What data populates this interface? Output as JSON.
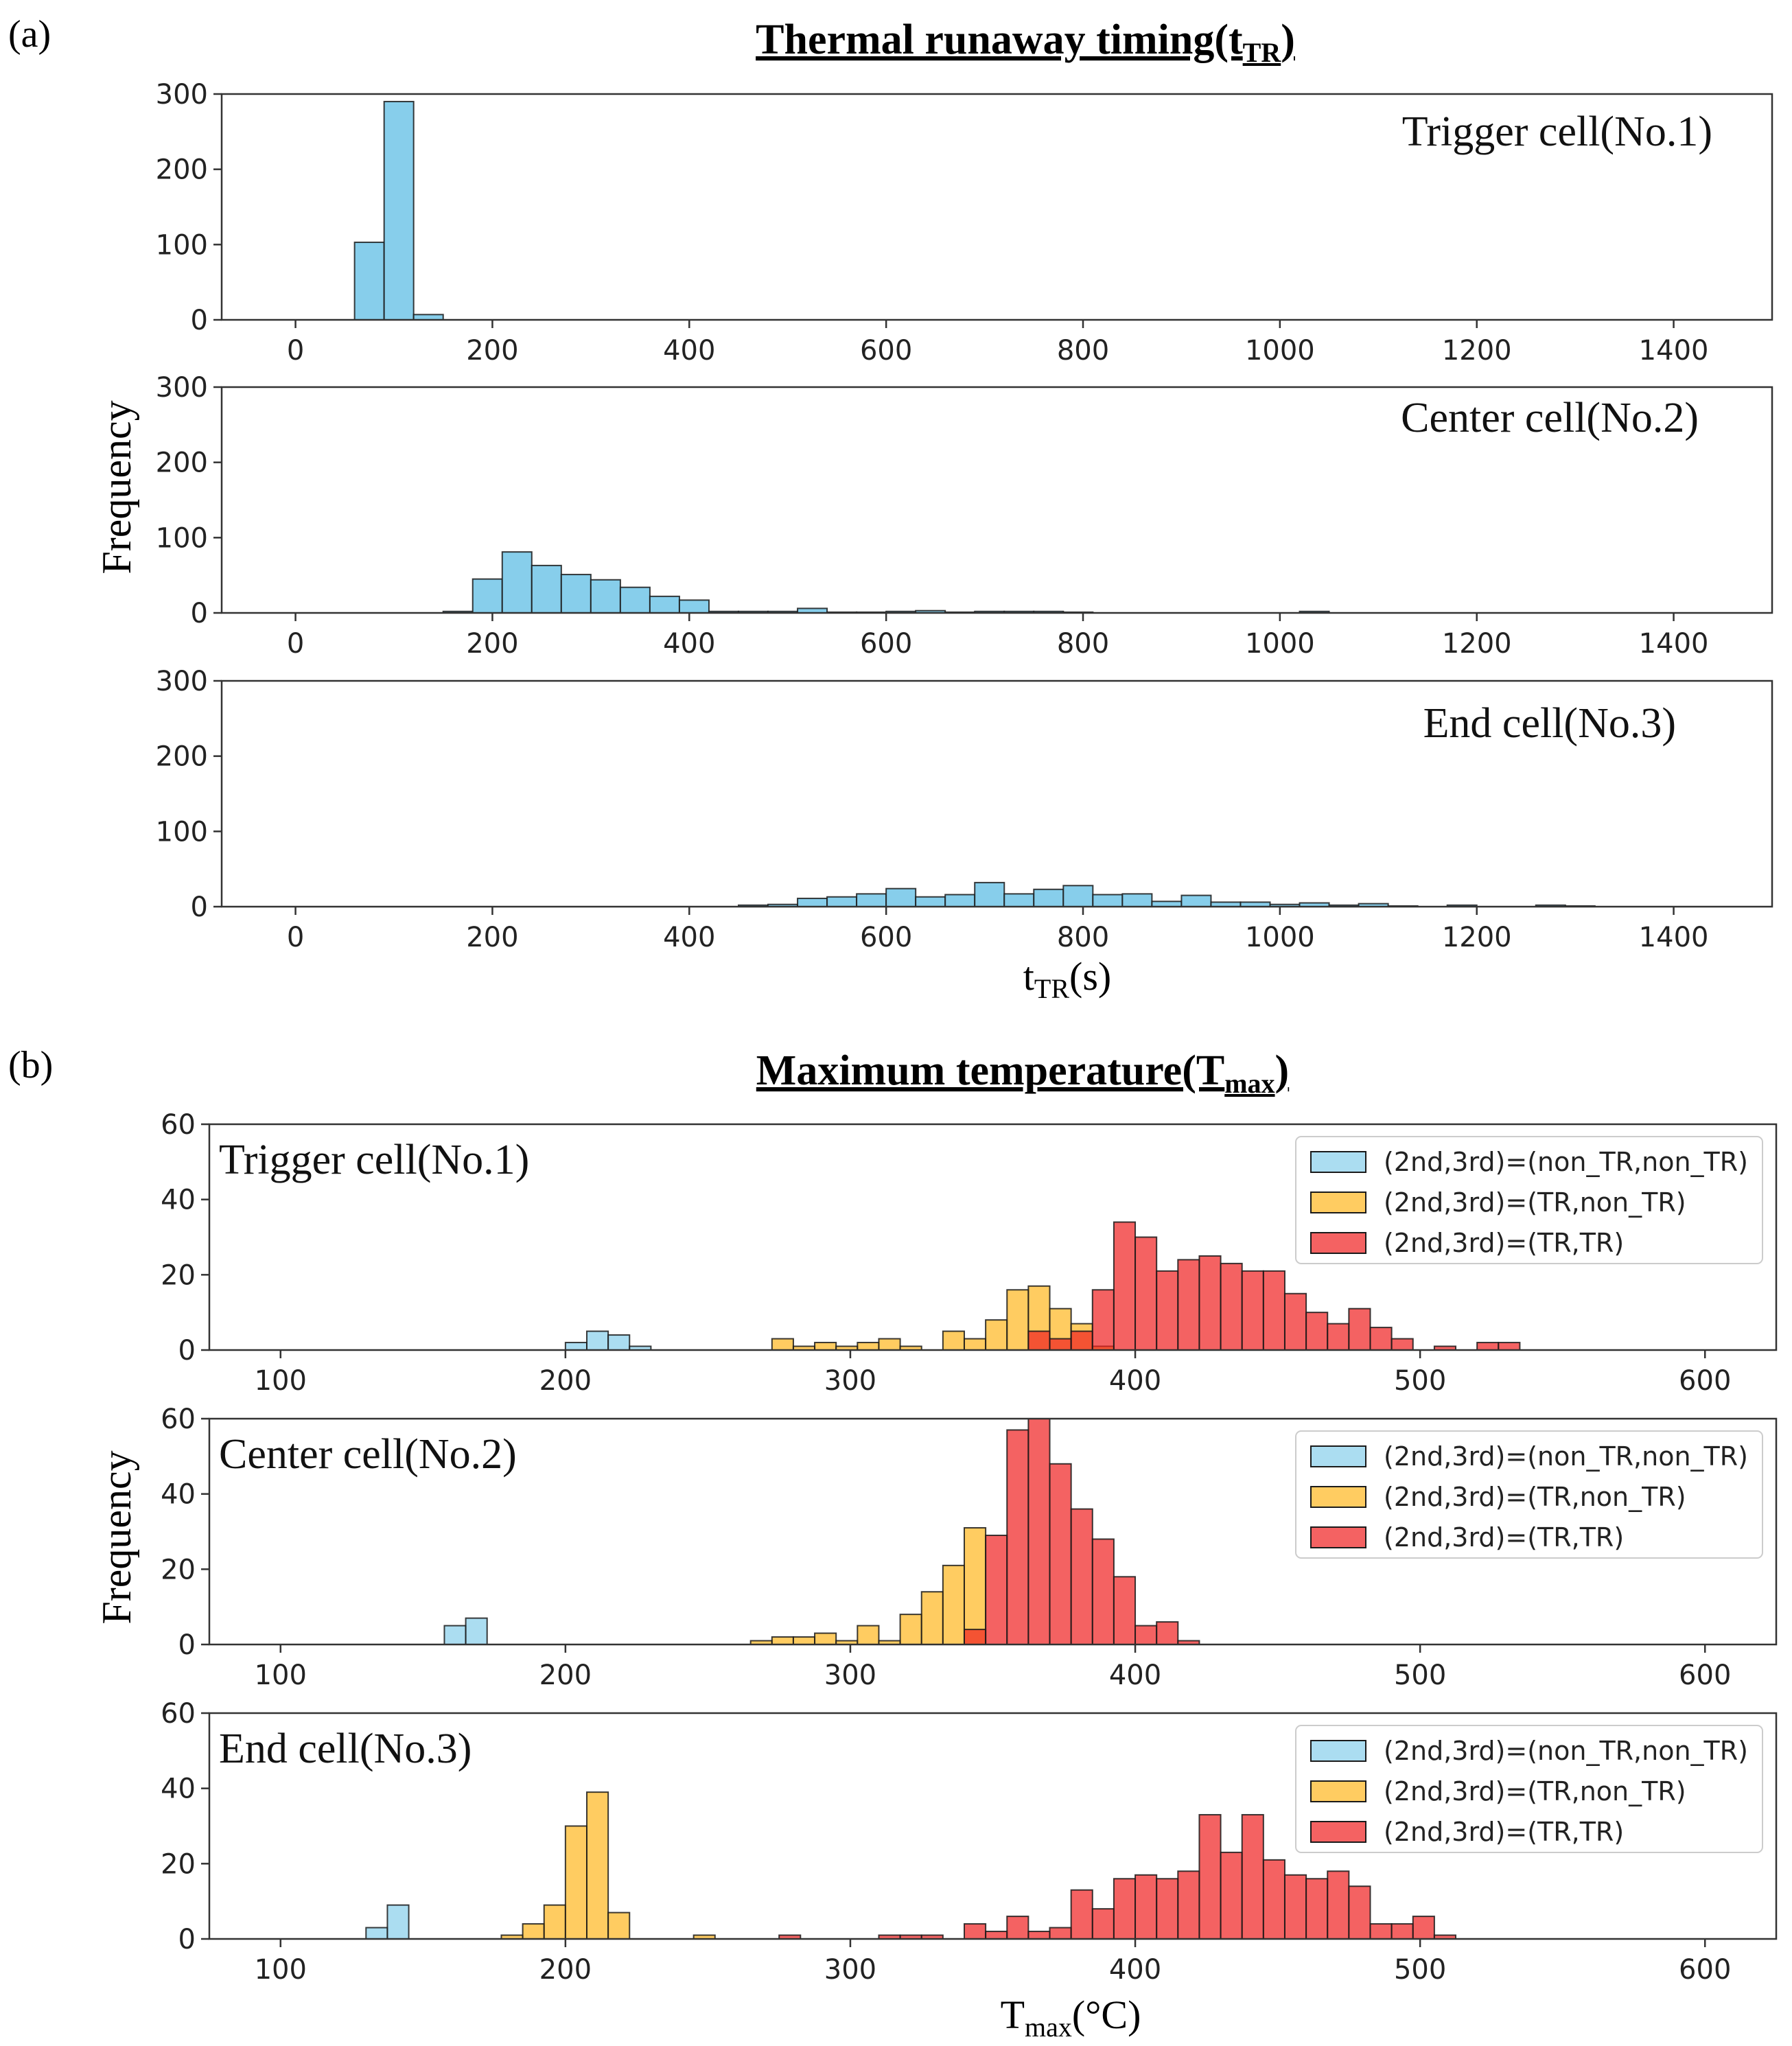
{
  "panel_a": {
    "label": "(a)",
    "title": "Thermal runaway timing(t",
    "title_sub": "TR",
    "title_close": ")",
    "ylabel": "Frequency",
    "xlabel": "t",
    "xlabel_sub": "TR",
    "xlabel_tail": "(s)"
  },
  "panel_b": {
    "label": "(b)",
    "title": "Maximum temperature(T",
    "title_sub": "max",
    "title_close": ")",
    "ylabel": "Frequency",
    "xlabel": "T",
    "xlabel_sub": "max",
    "xlabel_tail": "(°C)"
  },
  "chart_data": [
    {
      "type": "bar",
      "id": "a1",
      "panel": "a",
      "annotation": "Trigger cell(No.1)",
      "xlim": [
        -75,
        1500
      ],
      "ylim": [
        0,
        300
      ],
      "xticks": [
        0,
        200,
        400,
        600,
        800,
        1000,
        1200,
        1400
      ],
      "yticks": [
        0,
        100,
        200,
        300
      ],
      "bin_width": 30,
      "color": "#87CEEB",
      "bins": [
        [
          60,
          103
        ],
        [
          90,
          290
        ],
        [
          120,
          7
        ]
      ]
    },
    {
      "type": "bar",
      "id": "a2",
      "panel": "a",
      "annotation": "Center cell(No.2)",
      "xlim": [
        -75,
        1500
      ],
      "ylim": [
        0,
        300
      ],
      "xticks": [
        0,
        200,
        400,
        600,
        800,
        1000,
        1200,
        1400
      ],
      "yticks": [
        0,
        100,
        200,
        300
      ],
      "bin_width": 30,
      "color": "#87CEEB",
      "bins": [
        [
          150,
          2
        ],
        [
          180,
          45
        ],
        [
          210,
          81
        ],
        [
          240,
          63
        ],
        [
          270,
          51
        ],
        [
          300,
          44
        ],
        [
          330,
          34
        ],
        [
          360,
          22
        ],
        [
          390,
          17
        ],
        [
          420,
          2
        ],
        [
          450,
          2
        ],
        [
          480,
          2
        ],
        [
          510,
          6
        ],
        [
          540,
          1
        ],
        [
          570,
          1
        ],
        [
          600,
          2
        ],
        [
          630,
          3
        ],
        [
          660,
          1
        ],
        [
          690,
          2
        ],
        [
          720,
          2
        ],
        [
          750,
          2
        ],
        [
          780,
          1
        ],
        [
          1020,
          2
        ]
      ]
    },
    {
      "type": "bar",
      "id": "a3",
      "panel": "a",
      "annotation": "End cell(No.3)",
      "xlim": [
        -75,
        1500
      ],
      "ylim": [
        0,
        300
      ],
      "xticks": [
        0,
        200,
        400,
        600,
        800,
        1000,
        1200,
        1400
      ],
      "yticks": [
        0,
        100,
        200,
        300
      ],
      "bin_width": 30,
      "color": "#87CEEB",
      "bins": [
        [
          450,
          2
        ],
        [
          480,
          3
        ],
        [
          510,
          11
        ],
        [
          540,
          13
        ],
        [
          570,
          17
        ],
        [
          600,
          24
        ],
        [
          630,
          13
        ],
        [
          660,
          16
        ],
        [
          690,
          32
        ],
        [
          720,
          17
        ],
        [
          750,
          23
        ],
        [
          780,
          28
        ],
        [
          810,
          16
        ],
        [
          840,
          17
        ],
        [
          870,
          7
        ],
        [
          900,
          15
        ],
        [
          930,
          6
        ],
        [
          960,
          6
        ],
        [
          990,
          3
        ],
        [
          1020,
          5
        ],
        [
          1050,
          2
        ],
        [
          1080,
          4
        ],
        [
          1110,
          1
        ],
        [
          1170,
          2
        ],
        [
          1260,
          2
        ],
        [
          1290,
          1
        ]
      ]
    },
    {
      "type": "bar",
      "id": "b1",
      "panel": "b",
      "annotation": "Trigger cell(No.1)",
      "xlim": [
        75,
        625
      ],
      "ylim": [
        0,
        60
      ],
      "xticks": [
        100,
        200,
        300,
        400,
        500,
        600
      ],
      "yticks": [
        0,
        20,
        40,
        60
      ],
      "bin_width": 7.5,
      "legend": [
        "(2nd,3rd)=(non_TR,non_TR)",
        "(2nd,3rd)=(TR,non_TR)",
        "(2nd,3rd)=(TR,TR)"
      ],
      "legend_location": "top-right",
      "series": [
        {
          "name": "(2nd,3rd)=(non_TR,non_TR)",
          "color": "#87CEEB",
          "bins": [
            [
              200,
              2
            ],
            [
              207.5,
              5
            ],
            [
              215,
              4
            ],
            [
              222.5,
              1
            ]
          ]
        },
        {
          "name": "(2nd,3rd)=(TR,non_TR)",
          "color": "#FFB61E",
          "bins": [
            [
              272.5,
              3
            ],
            [
              280,
              1
            ],
            [
              287.5,
              2
            ],
            [
              295,
              1
            ],
            [
              302.5,
              2
            ],
            [
              310,
              3
            ],
            [
              317.5,
              1
            ],
            [
              332.5,
              5
            ],
            [
              340,
              3
            ],
            [
              347.5,
              8
            ],
            [
              355,
              16
            ],
            [
              362.5,
              17
            ],
            [
              370,
              11
            ],
            [
              377.5,
              7
            ],
            [
              385,
              1
            ]
          ]
        },
        {
          "name": "(2nd,3rd)=(TR,TR)",
          "color": "#F02020",
          "bins": [
            [
              362.5,
              5
            ],
            [
              370,
              3
            ],
            [
              377.5,
              5
            ],
            [
              385,
              16
            ],
            [
              392.5,
              34
            ],
            [
              400,
              30
            ],
            [
              407.5,
              21
            ],
            [
              415,
              24
            ],
            [
              422.5,
              25
            ],
            [
              430,
              23
            ],
            [
              437.5,
              21
            ],
            [
              445,
              21
            ],
            [
              452.5,
              15
            ],
            [
              460,
              10
            ],
            [
              467.5,
              7
            ],
            [
              475,
              11
            ],
            [
              482.5,
              6
            ],
            [
              490,
              3
            ],
            [
              505,
              1
            ],
            [
              520,
              2
            ],
            [
              527.5,
              2
            ]
          ]
        }
      ]
    },
    {
      "type": "bar",
      "id": "b2",
      "panel": "b",
      "annotation": "Center cell(No.2)",
      "xlim": [
        75,
        625
      ],
      "ylim": [
        0,
        60
      ],
      "xticks": [
        100,
        200,
        300,
        400,
        500,
        600
      ],
      "yticks": [
        0,
        20,
        40,
        60
      ],
      "bin_width": 7.5,
      "legend": [
        "(2nd,3rd)=(non_TR,non_TR)",
        "(2nd,3rd)=(TR,non_TR)",
        "(2nd,3rd)=(TR,TR)"
      ],
      "legend_location": "top-right",
      "series": [
        {
          "name": "(2nd,3rd)=(non_TR,non_TR)",
          "color": "#87CEEB",
          "bins": [
            [
              157.5,
              5
            ],
            [
              165,
              7
            ]
          ]
        },
        {
          "name": "(2nd,3rd)=(TR,non_TR)",
          "color": "#FFB61E",
          "bins": [
            [
              265,
              1
            ],
            [
              272.5,
              2
            ],
            [
              280,
              2
            ],
            [
              287.5,
              3
            ],
            [
              295,
              1
            ],
            [
              302.5,
              5
            ],
            [
              310,
              1
            ],
            [
              317.5,
              8
            ],
            [
              325,
              14
            ],
            [
              332.5,
              21
            ],
            [
              340,
              31
            ]
          ]
        },
        {
          "name": "(2nd,3rd)=(TR,TR)",
          "color": "#F02020",
          "bins": [
            [
              340,
              4
            ],
            [
              347.5,
              29
            ],
            [
              355,
              57
            ],
            [
              362.5,
              60
            ],
            [
              370,
              48
            ],
            [
              377.5,
              36
            ],
            [
              385,
              28
            ],
            [
              392.5,
              18
            ],
            [
              400,
              5
            ],
            [
              407.5,
              6
            ],
            [
              415,
              1
            ]
          ]
        }
      ]
    },
    {
      "type": "bar",
      "id": "b3",
      "panel": "b",
      "annotation": "End cell(No.3)",
      "xlim": [
        75,
        625
      ],
      "ylim": [
        0,
        60
      ],
      "xticks": [
        100,
        200,
        300,
        400,
        500,
        600
      ],
      "yticks": [
        0,
        20,
        40,
        60
      ],
      "bin_width": 7.5,
      "legend": [
        "(2nd,3rd)=(non_TR,non_TR)",
        "(2nd,3rd)=(TR,non_TR)",
        "(2nd,3rd)=(TR,TR)"
      ],
      "legend_location": "top-right",
      "series": [
        {
          "name": "(2nd,3rd)=(non_TR,non_TR)",
          "color": "#87CEEB",
          "bins": [
            [
              130,
              3
            ],
            [
              137.5,
              9
            ]
          ]
        },
        {
          "name": "(2nd,3rd)=(TR,non_TR)",
          "color": "#FFB61E",
          "bins": [
            [
              177.5,
              1
            ],
            [
              185,
              4
            ],
            [
              192.5,
              9
            ],
            [
              200,
              30
            ],
            [
              207.5,
              39
            ],
            [
              215,
              7
            ],
            [
              245,
              1
            ]
          ]
        },
        {
          "name": "(2nd,3rd)=(TR,TR)",
          "color": "#F02020",
          "bins": [
            [
              275,
              1
            ],
            [
              310,
              1
            ],
            [
              317.5,
              1
            ],
            [
              325,
              1
            ],
            [
              340,
              4
            ],
            [
              347.5,
              2
            ],
            [
              355,
              6
            ],
            [
              362.5,
              2
            ],
            [
              370,
              3
            ],
            [
              377.5,
              13
            ],
            [
              385,
              8
            ],
            [
              392.5,
              16
            ],
            [
              400,
              17
            ],
            [
              407.5,
              16
            ],
            [
              415,
              18
            ],
            [
              422.5,
              33
            ],
            [
              430,
              23
            ],
            [
              437.5,
              33
            ],
            [
              445,
              21
            ],
            [
              452.5,
              17
            ],
            [
              460,
              16
            ],
            [
              467.5,
              18
            ],
            [
              475,
              14
            ],
            [
              482.5,
              4
            ],
            [
              490,
              4
            ],
            [
              497.5,
              6
            ],
            [
              505,
              1
            ]
          ]
        }
      ]
    }
  ]
}
